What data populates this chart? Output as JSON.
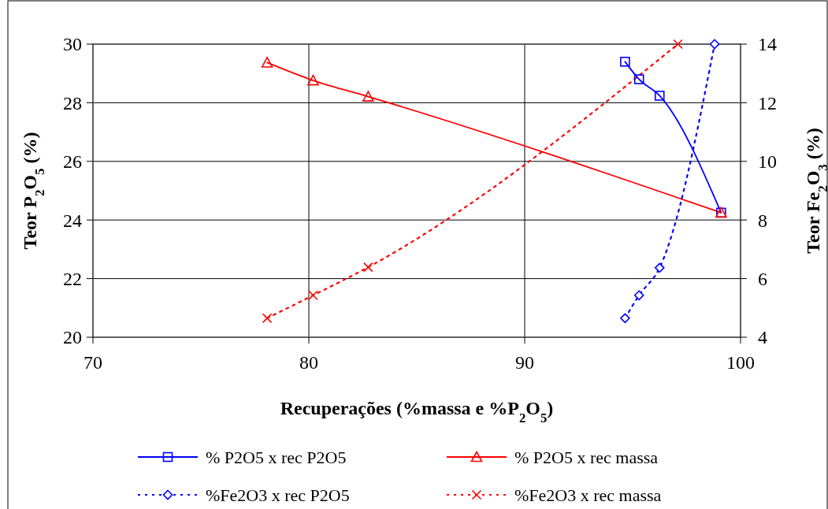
{
  "chart_data": {
    "type": "line",
    "xlabel": "Recuperações (%massa e %P$_{2}$O$_{5}$)",
    "ylabel": "Teor P$_{2}$O$_{5}$ (%)",
    "y2label": "Teor Fe$_{2}$O$_{3}$ (%)",
    "xlim": [
      70,
      100
    ],
    "xticks": [
      70,
      80,
      90,
      100
    ],
    "ylim": [
      20,
      30
    ],
    "yticks": [
      20,
      22,
      24,
      26,
      28,
      30
    ],
    "y2lim": [
      4,
      14
    ],
    "y2ticks": [
      4,
      6,
      8,
      10,
      12,
      14
    ],
    "grid": true,
    "legend": "bottom",
    "series": [
      {
        "name": "% P2O5 x rec P2O5",
        "color": "#0000ff",
        "marker": "square",
        "line_style": "solid",
        "x": [
          94.65,
          95.3,
          96.25,
          99.1
        ],
        "values": [
          29.4,
          28.8,
          28.24,
          24.25
        ]
      },
      {
        "name": "% P2O5 x rec massa",
        "color": "#ff0000",
        "marker": "triangle",
        "line_style": "solid",
        "x": [
          78.07,
          80.2,
          82.75,
          99.1
        ],
        "values": [
          29.37,
          28.76,
          28.21,
          24.25
        ]
      },
      {
        "name": "%Fe2O3 x rec P2O5",
        "color": "#0000ff",
        "marker": "diamond",
        "line_style": "dotted",
        "axis": "y2",
        "x": [
          94.65,
          95.3,
          96.25,
          98.8
        ],
        "values": [
          4.65,
          5.43,
          6.37,
          14
        ]
      },
      {
        "name": "%Fe2O3 x rec massa",
        "color": "#ff0000",
        "marker": "cross",
        "line_style": "dotted",
        "axis": "y2",
        "x": [
          78.07,
          80.2,
          82.75,
          97.1
        ],
        "values": [
          4.65,
          5.43,
          6.39,
          14
        ]
      }
    ]
  }
}
